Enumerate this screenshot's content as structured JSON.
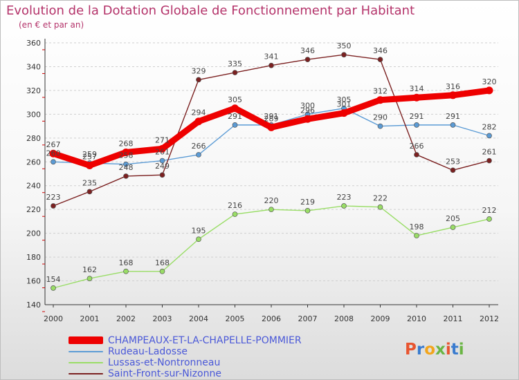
{
  "title": "Evolution de la Dotation Globale de Fonctionnement par Habitant",
  "subtitle": "(en € et par an)",
  "logo": {
    "text": "Proxiti",
    "colors": [
      "#e8542f",
      "#3a7ccf",
      "#f2a51c",
      "#6ab544",
      "#e8542f",
      "#3a7ccf",
      "#6ab544"
    ]
  },
  "chart_data": {
    "type": "line",
    "x": [
      2000,
      2001,
      2002,
      2003,
      2004,
      2005,
      2006,
      2007,
      2008,
      2009,
      2010,
      2011,
      2012
    ],
    "x_tick_labels": [
      "2000",
      "2001",
      "2002",
      "2003",
      "2004",
      "2005",
      "2006",
      "2007",
      "2008",
      "2009",
      "2010",
      "2011",
      "2012"
    ],
    "ylim": [
      140,
      360
    ],
    "y_ticks": [
      140,
      160,
      180,
      200,
      220,
      240,
      260,
      280,
      300,
      320,
      340,
      360
    ],
    "grid": "horizontal dashed",
    "legend_position": "bottom-left",
    "series": [
      {
        "name": "CHAMPEAUX-ET-LA-CHAPELLE-POMMIER",
        "color": "#ee0000",
        "highlight": true,
        "values": [
          267,
          257,
          268,
          271,
          294,
          305,
          289,
          296,
          301,
          312,
          314,
          316,
          320
        ],
        "labels": [
          "267",
          "257",
          "268",
          "271",
          "294",
          "305",
          "289",
          "296",
          "301",
          "312",
          "314",
          "316",
          "320"
        ]
      },
      {
        "name": "Rudeau-Ladosse",
        "color": "#5b9bd5",
        "highlight": false,
        "values": [
          260,
          259,
          258,
          261,
          266,
          291,
          291,
          300,
          305,
          290,
          291,
          291,
          282
        ],
        "labels": [
          "260",
          "259",
          "258",
          "261",
          "266",
          "291",
          "291",
          "300",
          "305",
          "290",
          "291",
          "291",
          "282"
        ]
      },
      {
        "name": "Lussas-et-Nontronneau",
        "color": "#99dd66",
        "highlight": false,
        "values": [
          154,
          162,
          168,
          168,
          195,
          216,
          220,
          219,
          223,
          222,
          198,
          205,
          212
        ],
        "labels": [
          "154",
          "162",
          "168",
          "168",
          "195",
          "216",
          "220",
          "219",
          "223",
          "222",
          "198",
          "205",
          "212"
        ]
      },
      {
        "name": "Saint-Front-sur-Nizonne",
        "color": "#7b2020",
        "highlight": false,
        "values": [
          223,
          235,
          248,
          249,
          329,
          335,
          341,
          346,
          350,
          346,
          266,
          253,
          261
        ],
        "labels": [
          "223",
          "235",
          "248",
          "249",
          "329",
          "335",
          "341",
          "346",
          "350",
          "346",
          "266",
          "253",
          "261"
        ]
      }
    ]
  }
}
